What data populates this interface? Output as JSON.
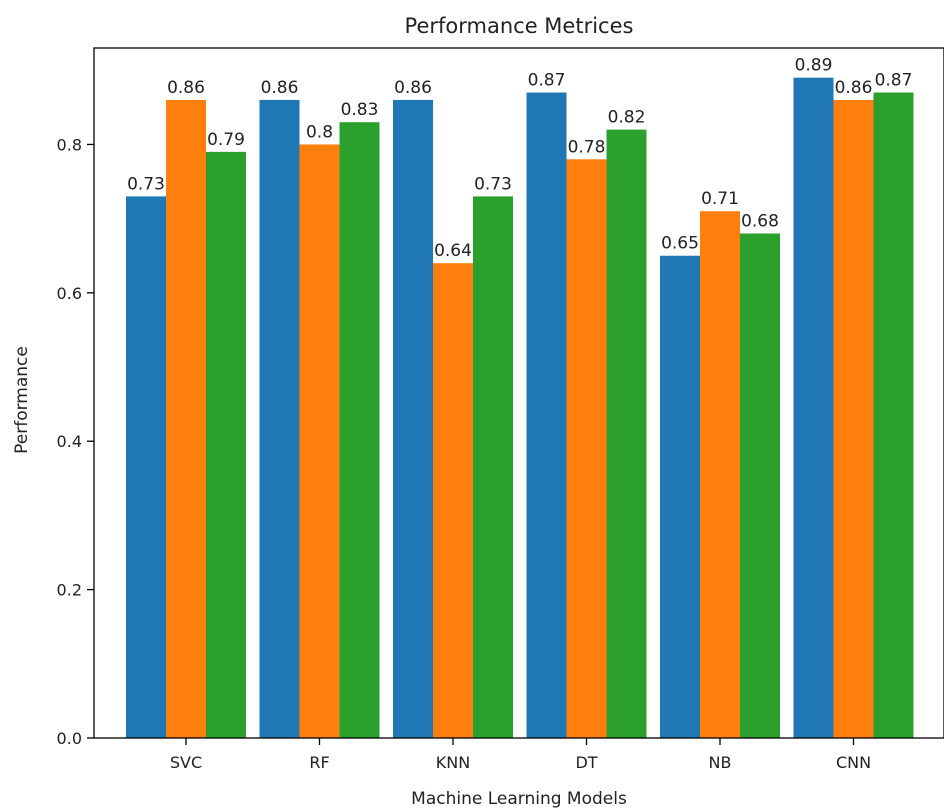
{
  "chart_data": {
    "type": "bar",
    "title": "Performance Metrices",
    "xlabel": "Machine Learning Models",
    "ylabel": "Performance",
    "categories": [
      "SVC",
      "RF",
      "KNN",
      "DT",
      "NB",
      "CNN"
    ],
    "series": [
      {
        "color": "#1f77b4",
        "values": [
          0.73,
          0.86,
          0.86,
          0.87,
          0.65,
          0.89
        ]
      },
      {
        "color": "#ff7f0e",
        "values": [
          0.86,
          0.8,
          0.64,
          0.78,
          0.71,
          0.86
        ]
      },
      {
        "color": "#2ca02c",
        "values": [
          0.79,
          0.83,
          0.73,
          0.82,
          0.68,
          0.87
        ]
      }
    ],
    "data_labels": [
      [
        "0.73",
        "0.86",
        "0.86",
        "0.87",
        "0.65",
        "0.89"
      ],
      [
        "0.86",
        "0.8",
        "0.64",
        "0.78",
        "0.71",
        "0.86"
      ],
      [
        "0.79",
        "0.83",
        "0.73",
        "0.82",
        "0.68",
        "0.87"
      ]
    ],
    "y_ticks": [
      "0.0",
      "0.2",
      "0.4",
      "0.6",
      "0.8"
    ],
    "ylim": [
      0,
      0.93
    ],
    "grid": false,
    "legend": "none"
  }
}
